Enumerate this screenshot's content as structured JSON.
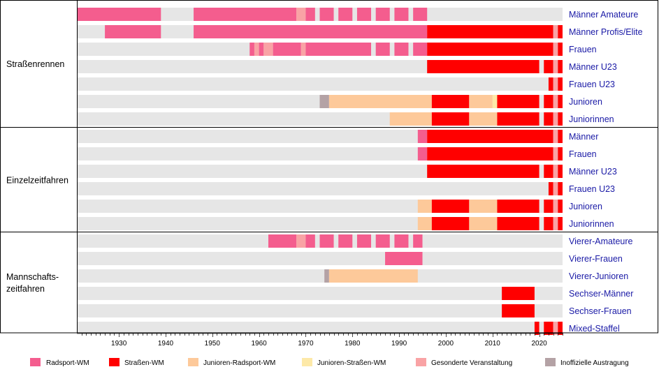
{
  "chart_data": {
    "type": "timeline",
    "xlim": [
      1921,
      2025
    ],
    "x_ticks": [
      1930,
      1940,
      1950,
      1960,
      1970,
      1980,
      1990,
      2000,
      2010,
      2020
    ],
    "categories": {
      "R": {
        "label": "Radsport-WM",
        "color": "#f45d8e"
      },
      "S": {
        "label": "Straßen-WM",
        "color": "#ff0000"
      },
      "J": {
        "label": "Junioren-Radsport-WM",
        "color": "#fdc99a"
      },
      "Y": {
        "label": "Junioren-Straßen-WM",
        "color": "#fde9a8"
      },
      "G": {
        "label": "Gesonderte Veranstaltung",
        "color": "#f9a3a5"
      },
      "I": {
        "label": "Inoffizielle Austragung",
        "color": "#b4a2a5"
      }
    },
    "legend_order": [
      "R",
      "S",
      "J",
      "Y",
      "G",
      "I"
    ],
    "groups": [
      {
        "label": "Straßenrennen",
        "rows": [
          {
            "label": "Männer Amateure",
            "segments": [
              [
                "R",
                1921,
                1939
              ],
              [
                "R",
                1946,
                1968
              ],
              [
                "G",
                1968,
                1970
              ],
              [
                "R",
                1970,
                1972
              ],
              [
                "R",
                1973,
                1976
              ],
              [
                "R",
                1977,
                1980
              ],
              [
                "R",
                1981,
                1984
              ],
              [
                "R",
                1985,
                1988
              ],
              [
                "R",
                1989,
                1992
              ],
              [
                "R",
                1993,
                1996
              ]
            ]
          },
          {
            "label": "Männer Profis/Elite",
            "segments": [
              [
                "R",
                1927,
                1939
              ],
              [
                "R",
                1946,
                1996
              ],
              [
                "S",
                1996,
                2023
              ],
              [
                "G",
                2023,
                2024
              ],
              [
                "S",
                2024,
                2025
              ]
            ]
          },
          {
            "label": "Frauen",
            "segments": [
              [
                "R",
                1958,
                1959
              ],
              [
                "G",
                1959,
                1960
              ],
              [
                "R",
                1960,
                1961
              ],
              [
                "G",
                1961,
                1963
              ],
              [
                "R",
                1963,
                1969
              ],
              [
                "G",
                1969,
                1970
              ],
              [
                "R",
                1970,
                1984
              ],
              [
                "R",
                1985,
                1988
              ],
              [
                "R",
                1989,
                1992
              ],
              [
                "R",
                1993,
                1996
              ],
              [
                "S",
                1996,
                2023
              ],
              [
                "G",
                2023,
                2024
              ],
              [
                "S",
                2024,
                2025
              ]
            ]
          },
          {
            "label": "Männer U23",
            "segments": [
              [
                "S",
                1996,
                2020
              ],
              [
                "S",
                2021,
                2023
              ],
              [
                "G",
                2023,
                2024
              ],
              [
                "S",
                2024,
                2025
              ]
            ]
          },
          {
            "label": "Frauen U23",
            "segments": [
              [
                "S",
                2022,
                2023
              ],
              [
                "G",
                2023,
                2024
              ],
              [
                "S",
                2024,
                2025
              ]
            ]
          },
          {
            "label": "Junioren",
            "segments": [
              [
                "I",
                1973,
                1975
              ],
              [
                "J",
                1975,
                1997
              ],
              [
                "S",
                1997,
                2005
              ],
              [
                "J",
                2005,
                2010
              ],
              [
                "Y",
                2010,
                2011
              ],
              [
                "S",
                2011,
                2020
              ],
              [
                "S",
                2021,
                2023
              ],
              [
                "G",
                2023,
                2024
              ],
              [
                "S",
                2024,
                2025
              ]
            ]
          },
          {
            "label": "Juniorinnen",
            "segments": [
              [
                "J",
                1988,
                1997
              ],
              [
                "S",
                1997,
                2005
              ],
              [
                "J",
                2005,
                2011
              ],
              [
                "S",
                2011,
                2020
              ],
              [
                "S",
                2021,
                2023
              ],
              [
                "G",
                2023,
                2024
              ],
              [
                "S",
                2024,
                2025
              ]
            ]
          }
        ]
      },
      {
        "label": "Einzelzeitfahren",
        "rows": [
          {
            "label": "Männer",
            "segments": [
              [
                "R",
                1994,
                1996
              ],
              [
                "S",
                1996,
                2023
              ],
              [
                "G",
                2023,
                2024
              ],
              [
                "S",
                2024,
                2025
              ]
            ]
          },
          {
            "label": "Frauen",
            "segments": [
              [
                "R",
                1994,
                1996
              ],
              [
                "S",
                1996,
                2023
              ],
              [
                "G",
                2023,
                2024
              ],
              [
                "S",
                2024,
                2025
              ]
            ]
          },
          {
            "label": "Männer U23",
            "segments": [
              [
                "S",
                1996,
                2020
              ],
              [
                "S",
                2021,
                2023
              ],
              [
                "G",
                2023,
                2024
              ],
              [
                "S",
                2024,
                2025
              ]
            ]
          },
          {
            "label": "Frauen U23",
            "segments": [
              [
                "S",
                2022,
                2023
              ],
              [
                "G",
                2023,
                2024
              ],
              [
                "S",
                2024,
                2025
              ]
            ]
          },
          {
            "label": "Junioren",
            "segments": [
              [
                "J",
                1994,
                1997
              ],
              [
                "S",
                1997,
                2005
              ],
              [
                "J",
                2005,
                2011
              ],
              [
                "S",
                2011,
                2020
              ],
              [
                "S",
                2021,
                2023
              ],
              [
                "G",
                2023,
                2024
              ],
              [
                "S",
                2024,
                2025
              ]
            ]
          },
          {
            "label": "Juniorinnen",
            "segments": [
              [
                "J",
                1994,
                1997
              ],
              [
                "S",
                1997,
                2005
              ],
              [
                "J",
                2005,
                2011
              ],
              [
                "S",
                2011,
                2020
              ],
              [
                "S",
                2021,
                2023
              ],
              [
                "G",
                2023,
                2024
              ],
              [
                "S",
                2024,
                2025
              ]
            ]
          }
        ]
      },
      {
        "label": "Mannschafts-\nzeitfahren",
        "rows": [
          {
            "label": "Vierer-Amateure",
            "segments": [
              [
                "R",
                1962,
                1968
              ],
              [
                "G",
                1968,
                1970
              ],
              [
                "R",
                1970,
                1972
              ],
              [
                "R",
                1973,
                1976
              ],
              [
                "R",
                1977,
                1980
              ],
              [
                "R",
                1981,
                1984
              ],
              [
                "R",
                1985,
                1988
              ],
              [
                "R",
                1989,
                1992
              ],
              [
                "R",
                1993,
                1995
              ]
            ]
          },
          {
            "label": "Vierer-Frauen",
            "segments": [
              [
                "R",
                1987,
                1995
              ]
            ]
          },
          {
            "label": "Vierer-Junioren",
            "segments": [
              [
                "I",
                1974,
                1975
              ],
              [
                "J",
                1975,
                1994
              ]
            ]
          },
          {
            "label": "Sechser-Männer",
            "segments": [
              [
                "S",
                2012,
                2019
              ]
            ]
          },
          {
            "label": "Sechser-Frauen",
            "segments": [
              [
                "S",
                2012,
                2019
              ]
            ]
          },
          {
            "label": "Mixed-Staffel",
            "segments": [
              [
                "S",
                2019,
                2020
              ],
              [
                "S",
                2021,
                2023
              ],
              [
                "G",
                2023,
                2024
              ],
              [
                "S",
                2024,
                2025
              ]
            ]
          }
        ]
      }
    ]
  }
}
